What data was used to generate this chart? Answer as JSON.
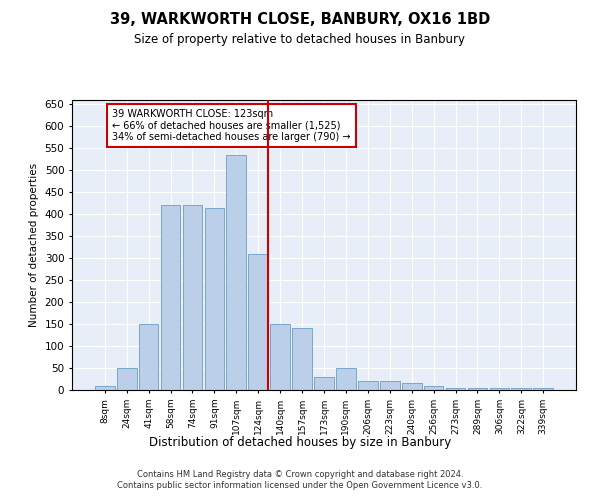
{
  "title": "39, WARKWORTH CLOSE, BANBURY, OX16 1BD",
  "subtitle": "Size of property relative to detached houses in Banbury",
  "xlabel": "Distribution of detached houses by size in Banbury",
  "ylabel": "Number of detached properties",
  "bar_color": "#BBCFE8",
  "bar_edge_color": "#6B9EC8",
  "background_color": "#E8EEF8",
  "grid_color": "#FFFFFF",
  "categories": [
    "8sqm",
    "24sqm",
    "41sqm",
    "58sqm",
    "74sqm",
    "91sqm",
    "107sqm",
    "124sqm",
    "140sqm",
    "157sqm",
    "173sqm",
    "190sqm",
    "206sqm",
    "223sqm",
    "240sqm",
    "256sqm",
    "273sqm",
    "289sqm",
    "306sqm",
    "322sqm",
    "339sqm"
  ],
  "values": [
    10,
    50,
    150,
    420,
    420,
    415,
    535,
    310,
    150,
    140,
    30,
    50,
    20,
    20,
    15,
    10,
    5,
    5,
    5,
    5,
    5
  ],
  "property_index": 7,
  "property_label": "39 WARKWORTH CLOSE: 123sqm",
  "annotation_line1": "← 66% of detached houses are smaller (1,525)",
  "annotation_line2": "34% of semi-detached houses are larger (790) →",
  "red_line_color": "#CC0000",
  "annotation_box_color": "#CC0000",
  "ylim": [
    0,
    660
  ],
  "yticks": [
    0,
    50,
    100,
    150,
    200,
    250,
    300,
    350,
    400,
    450,
    500,
    550,
    600,
    650
  ],
  "footer_line1": "Contains HM Land Registry data © Crown copyright and database right 2024.",
  "footer_line2": "Contains public sector information licensed under the Open Government Licence v3.0."
}
